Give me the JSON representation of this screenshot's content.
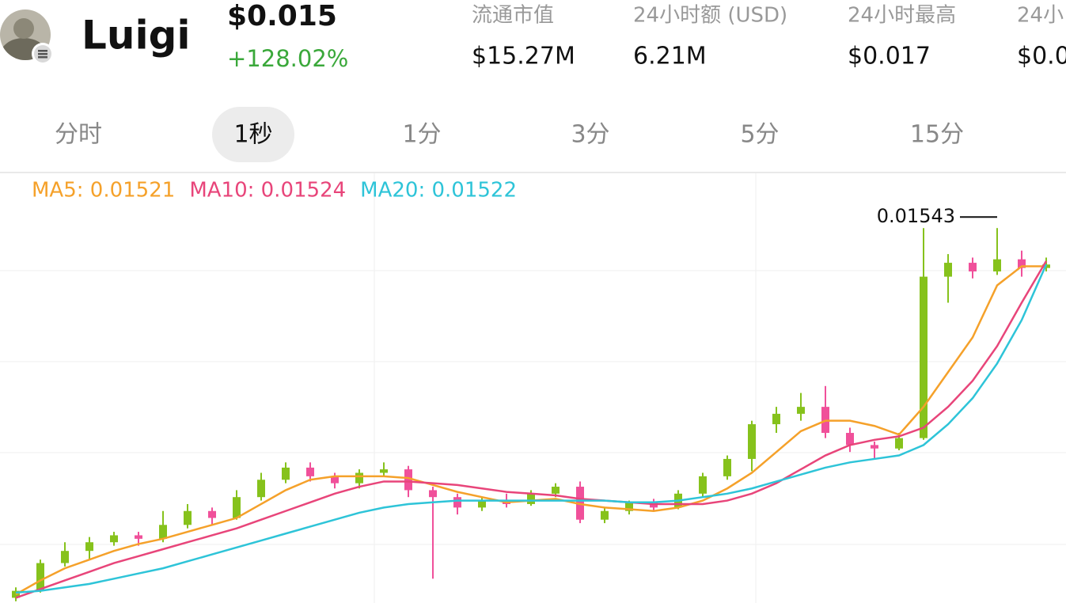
{
  "header": {
    "title": "Luigi",
    "price": "$0.015",
    "change": "+128.02%",
    "stats": [
      {
        "label": "流通市值",
        "value": "$15.27M"
      },
      {
        "label": "24小时额 (USD)",
        "value": "6.21M"
      },
      {
        "label": "24小时最高",
        "value": "$0.017"
      },
      {
        "label": "24小",
        "value": "$0.0"
      }
    ]
  },
  "tabs": {
    "items": [
      "分时",
      "1秒",
      "1分",
      "3分",
      "5分",
      "15分"
    ],
    "selected": 1
  },
  "chart_data": {
    "type": "candlestick",
    "up_color": "#86c21c",
    "down_color": "#f0509a",
    "ylim": [
      0.01327,
      0.01575
    ],
    "open": [
      0.0133,
      0.01334,
      0.0135,
      0.01357,
      0.01362,
      0.01366,
      0.01364,
      0.01372,
      0.0138,
      0.01376,
      0.01388,
      0.01398,
      0.01405,
      0.014,
      0.01396,
      0.01402,
      0.01404,
      0.01392,
      0.01388,
      0.01382,
      0.01386,
      0.01384,
      0.0139,
      0.01394,
      0.01375,
      0.0138,
      0.01385,
      0.01382,
      0.0139,
      0.014,
      0.0141,
      0.0143,
      0.01436,
      0.0144,
      0.01425,
      0.01418,
      0.01416,
      0.01422,
      0.01515,
      0.01523,
      0.01518,
      0.01525,
      0.0152
    ],
    "close": [
      0.01334,
      0.0135,
      0.01357,
      0.01362,
      0.01366,
      0.01364,
      0.01372,
      0.0138,
      0.01376,
      0.01388,
      0.01398,
      0.01405,
      0.014,
      0.01396,
      0.01402,
      0.01404,
      0.01392,
      0.01388,
      0.01382,
      0.01386,
      0.01384,
      0.0139,
      0.01394,
      0.01375,
      0.0138,
      0.01385,
      0.01382,
      0.0139,
      0.014,
      0.0141,
      0.0143,
      0.01436,
      0.0144,
      0.01425,
      0.01418,
      0.01416,
      0.01422,
      0.01515,
      0.01523,
      0.01518,
      0.01525,
      0.0152,
      0.01522
    ],
    "high": [
      0.01336,
      0.01352,
      0.01362,
      0.01365,
      0.01368,
      0.01368,
      0.0138,
      0.01384,
      0.01382,
      0.01392,
      0.01402,
      0.01408,
      0.01408,
      0.01402,
      0.01404,
      0.01408,
      0.01406,
      0.01394,
      0.0139,
      0.01388,
      0.0139,
      0.01392,
      0.01396,
      0.01397,
      0.01382,
      0.01386,
      0.01387,
      0.01392,
      0.01402,
      0.01412,
      0.01432,
      0.0144,
      0.01448,
      0.01452,
      0.01428,
      0.0142,
      0.01425,
      0.01543,
      0.01528,
      0.01526,
      0.01543,
      0.0153,
      0.01526
    ],
    "low": [
      0.01328,
      0.01333,
      0.01348,
      0.01352,
      0.0136,
      0.0136,
      0.01362,
      0.0137,
      0.01372,
      0.01375,
      0.01386,
      0.01396,
      0.01397,
      0.01393,
      0.01393,
      0.014,
      0.01388,
      0.01341,
      0.01378,
      0.0138,
      0.01382,
      0.01383,
      0.01388,
      0.01373,
      0.01373,
      0.01378,
      0.0138,
      0.01381,
      0.01388,
      0.01398,
      0.01403,
      0.01425,
      0.01432,
      0.01422,
      0.01414,
      0.0141,
      0.01415,
      0.01421,
      0.015,
      0.01514,
      0.01516,
      0.01515,
      0.01518
    ],
    "series": [
      {
        "name": "MA5",
        "legend": "MA5: 0.01521",
        "color": "#f5a12a",
        "values": [
          0.01332,
          0.0134,
          0.01347,
          0.01352,
          0.01357,
          0.01361,
          0.01364,
          0.01368,
          0.01372,
          0.01376,
          0.01384,
          0.01392,
          0.01398,
          0.014,
          0.014,
          0.014,
          0.01399,
          0.01395,
          0.01391,
          0.01388,
          0.01385,
          0.01386,
          0.01387,
          0.01384,
          0.01382,
          0.01381,
          0.0138,
          0.01382,
          0.01386,
          0.01393,
          0.01402,
          0.01414,
          0.01426,
          0.01432,
          0.01432,
          0.01429,
          0.01424,
          0.0144,
          0.0146,
          0.0148,
          0.0151,
          0.01521,
          0.01521
        ]
      },
      {
        "name": "MA10",
        "legend": "MA10: 0.01524",
        "color": "#e8457a",
        "values": [
          0.0133,
          0.01335,
          0.0134,
          0.01345,
          0.0135,
          0.01354,
          0.01358,
          0.01362,
          0.01366,
          0.0137,
          0.01375,
          0.0138,
          0.01385,
          0.0139,
          0.01394,
          0.01397,
          0.01397,
          0.01396,
          0.01395,
          0.01393,
          0.01391,
          0.0139,
          0.01389,
          0.01387,
          0.01386,
          0.01385,
          0.01384,
          0.01384,
          0.01384,
          0.01386,
          0.0139,
          0.01396,
          0.01404,
          0.01412,
          0.01418,
          0.01421,
          0.01423,
          0.01428,
          0.0144,
          0.01455,
          0.01475,
          0.015,
          0.01524
        ]
      },
      {
        "name": "MA20",
        "legend": "MA20: 0.01522",
        "color": "#2ec4d8",
        "values": [
          0.01333,
          0.01334,
          0.01336,
          0.01338,
          0.01341,
          0.01344,
          0.01347,
          0.01351,
          0.01355,
          0.01359,
          0.01363,
          0.01367,
          0.01371,
          0.01375,
          0.01379,
          0.01382,
          0.01384,
          0.01385,
          0.01386,
          0.01386,
          0.01386,
          0.01386,
          0.01386,
          0.01386,
          0.01386,
          0.01385,
          0.01385,
          0.01386,
          0.01388,
          0.0139,
          0.01393,
          0.01397,
          0.01401,
          0.01405,
          0.01408,
          0.0141,
          0.01412,
          0.01418,
          0.0143,
          0.01445,
          0.01465,
          0.0149,
          0.01522
        ]
      }
    ],
    "annotation": {
      "text": "0.01543",
      "candle": 40
    }
  }
}
